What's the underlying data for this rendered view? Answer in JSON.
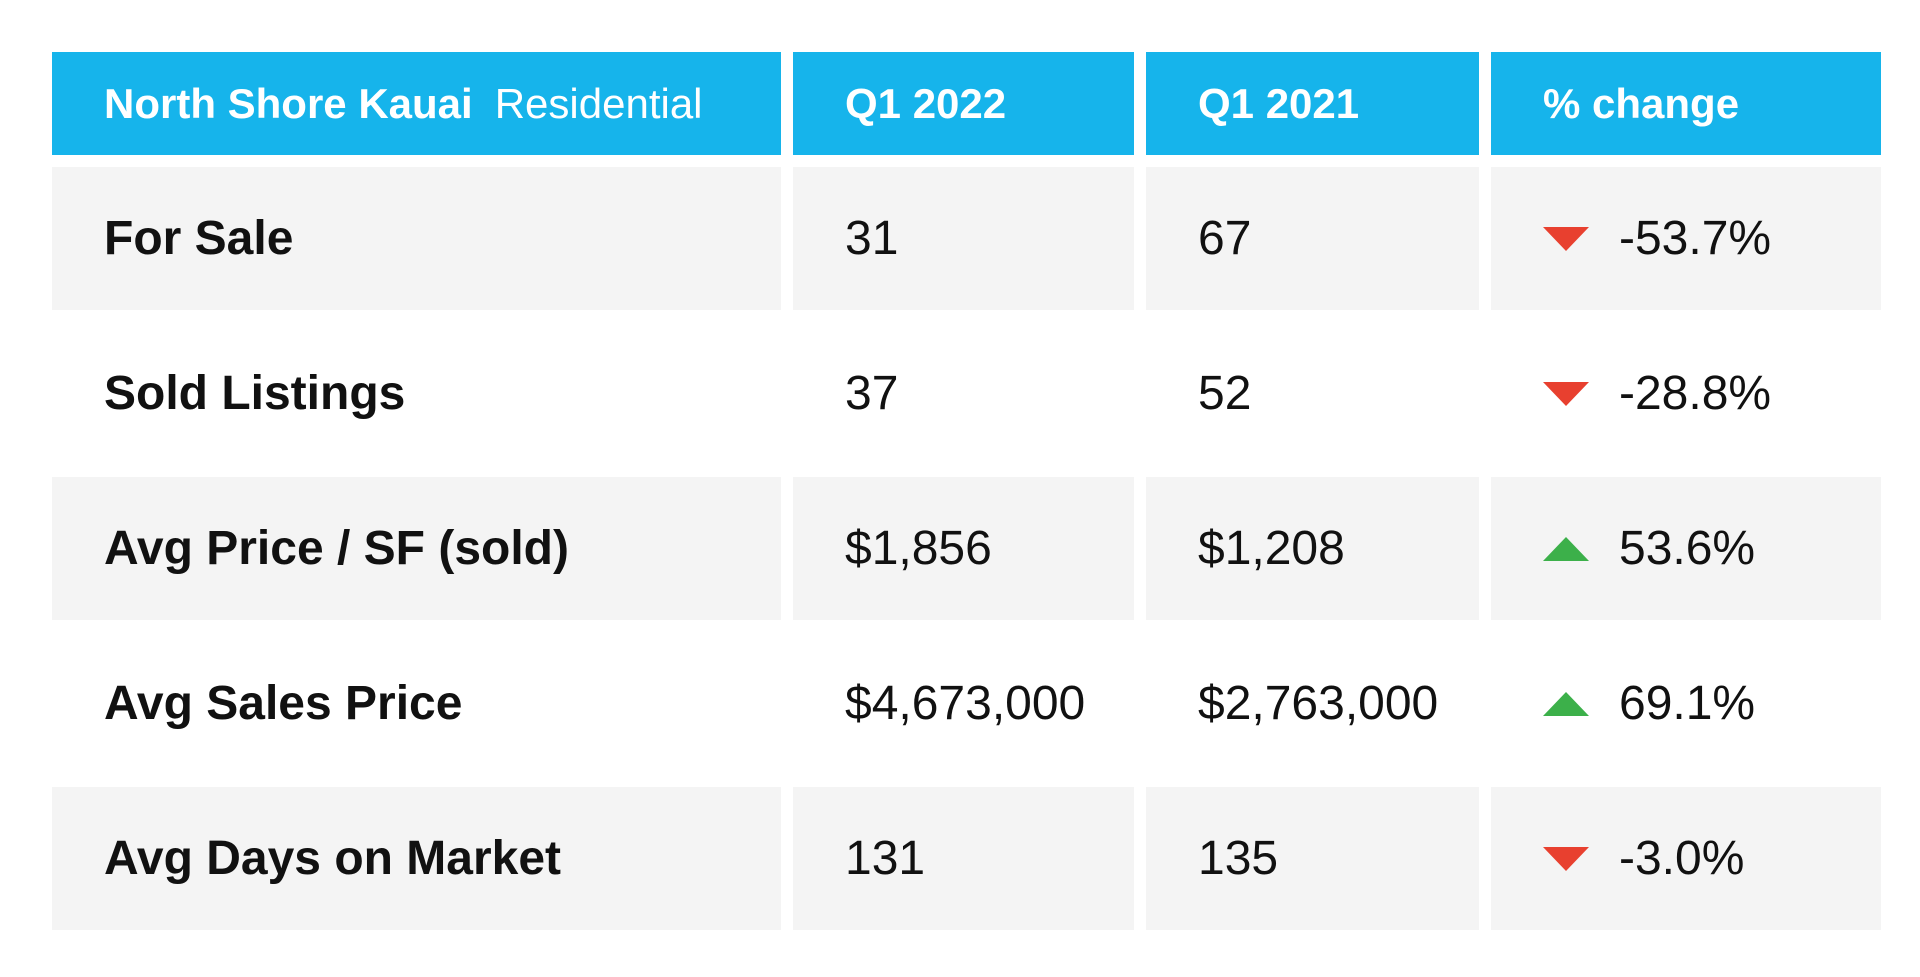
{
  "table": {
    "header": {
      "region": "North Shore Kauai",
      "category": "Residential",
      "col_current": "Q1 2022",
      "col_prior": "Q1 2021",
      "col_change": "% change"
    },
    "rows": [
      {
        "label": "For Sale",
        "current": "31",
        "prior": "67",
        "change": "-53.7%",
        "direction": "down"
      },
      {
        "label": "Sold Listings",
        "current": "37",
        "prior": "52",
        "change": "-28.8%",
        "direction": "down"
      },
      {
        "label": "Avg Price / SF (sold)",
        "current": "$1,856",
        "prior": "$1,208",
        "change": "53.6%",
        "direction": "up"
      },
      {
        "label": "Avg Sales Price",
        "current": "$4,673,000",
        "prior": "$2,763,000",
        "change": "69.1%",
        "direction": "up"
      },
      {
        "label": "Avg Days on Market",
        "current": "131",
        "prior": "135",
        "change": "-3.0%",
        "direction": "down"
      }
    ]
  },
  "colors": {
    "header_bg": "#16b4eb",
    "row_shade": "#f4f4f4",
    "arrow_up": "#3cb04a",
    "arrow_down": "#e8402f"
  },
  "chart_data": {
    "type": "table",
    "columns": [
      "North Shore Kauai Residential",
      "Q1 2022",
      "Q1 2021",
      "% change"
    ],
    "rows": [
      [
        "For Sale",
        31,
        67,
        -53.7
      ],
      [
        "Sold Listings",
        37,
        52,
        -28.8
      ],
      [
        "Avg Price / SF (sold)",
        1856,
        1208,
        53.6
      ],
      [
        "Avg Sales Price",
        4673000,
        2763000,
        69.1
      ],
      [
        "Avg Days on Market",
        131,
        135,
        -3.0
      ]
    ]
  }
}
